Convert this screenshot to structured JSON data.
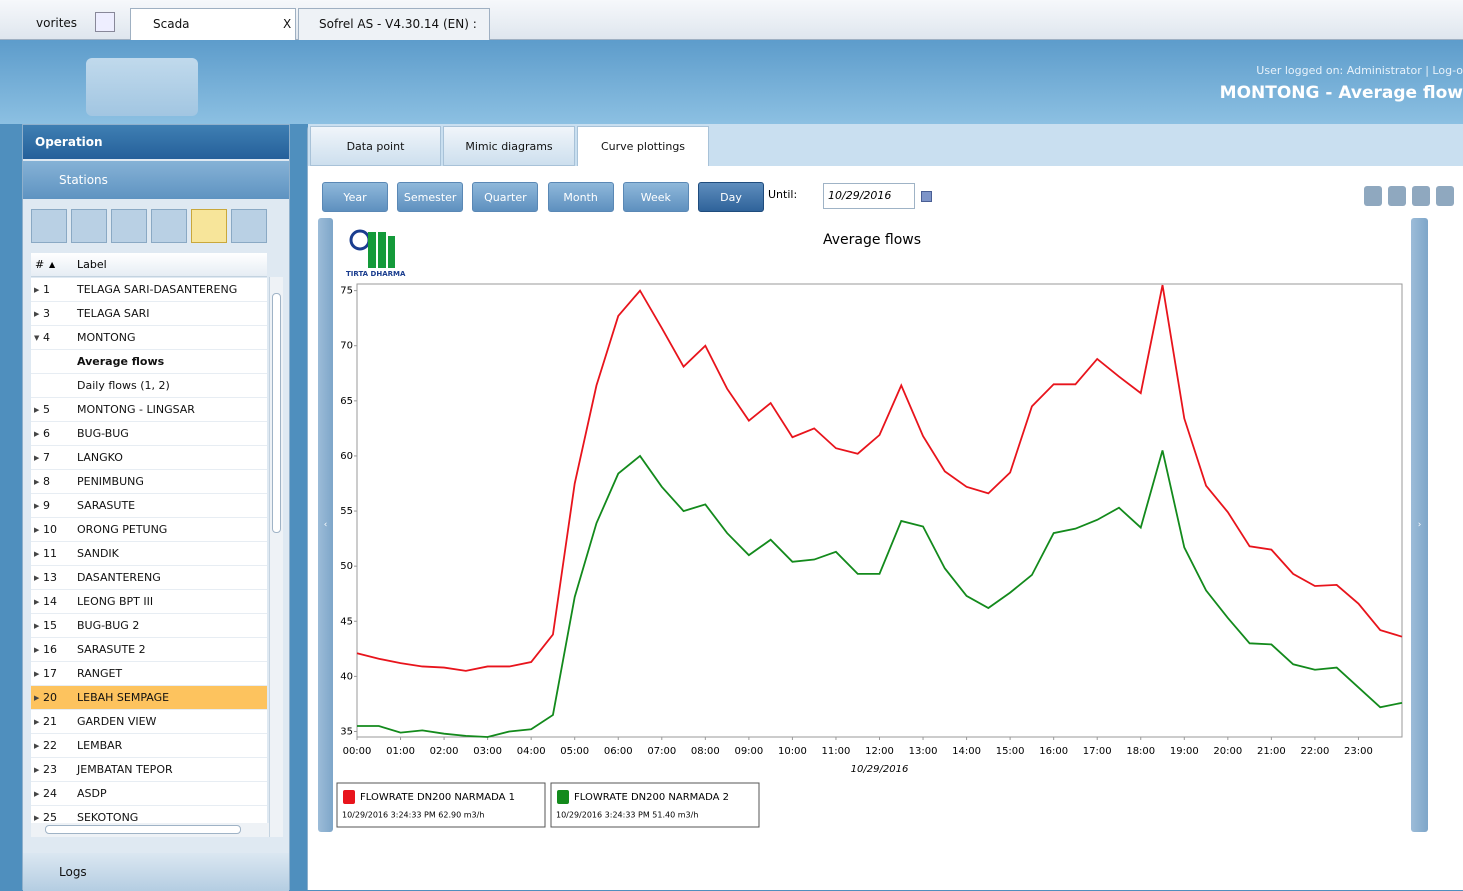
{
  "browser": {
    "tabs": [
      "vorites",
      "Scada",
      "Sofrel AS - V4.30.14 (EN) : ..."
    ],
    "close": "X"
  },
  "header": {
    "user": "User logged on: Administrator | Log-o",
    "title": "MONTONG - Average flow"
  },
  "sidebar": {
    "title": "Operation",
    "section": "Stations",
    "columns": [
      "#",
      "Label"
    ],
    "rows": [
      {
        "id": "1",
        "label": "TELAGA SARI-DASANTERENG"
      },
      {
        "id": "3",
        "label": "TELAGA SARI"
      },
      {
        "id": "4",
        "label": "MONTONG",
        "expanded": true
      },
      {
        "label": "Average flows",
        "current": true
      },
      {
        "label": "Daily flows (1, 2)"
      },
      {
        "id": "5",
        "label": "MONTONG - LINGSAR"
      },
      {
        "id": "6",
        "label": "BUG-BUG"
      },
      {
        "id": "7",
        "label": "LANGKO"
      },
      {
        "id": "8",
        "label": "PENIMBUNG"
      },
      {
        "id": "9",
        "label": "SARASUTE"
      },
      {
        "id": "10",
        "label": "ORONG PETUNG"
      },
      {
        "id": "11",
        "label": "SANDIK"
      },
      {
        "id": "13",
        "label": "DASANTERENG"
      },
      {
        "id": "14",
        "label": "LEONG BPT III"
      },
      {
        "id": "15",
        "label": "BUG-BUG 2"
      },
      {
        "id": "16",
        "label": "SARASUTE 2"
      },
      {
        "id": "17",
        "label": "RANGET"
      },
      {
        "id": "20",
        "label": "LEBAH SEMPAGE",
        "highlighted": true
      },
      {
        "id": "21",
        "label": "GARDEN VIEW"
      },
      {
        "id": "22",
        "label": "LEMBAR"
      },
      {
        "id": "23",
        "label": "JEMBATAN TEPOR"
      },
      {
        "id": "24",
        "label": "ASDP"
      },
      {
        "id": "25",
        "label": "SEKOTONG"
      }
    ],
    "footer": "Logs"
  },
  "tabs": [
    "Data point",
    "Mimic diagrams",
    "Curve plottings"
  ],
  "active_tab": 2,
  "toolbar": {
    "periods": [
      "Year",
      "Semester",
      "Quarter",
      "Month",
      "Week",
      "Day"
    ],
    "active_period": 5,
    "until_label": "Until:",
    "until": "10/29/2016"
  },
  "chart_data": {
    "type": "line",
    "title": "Average flows",
    "logo": "TIRTA DHARMA",
    "xlabel": "10/29/2016",
    "grid": false,
    "x": [
      0,
      0.5,
      1,
      1.5,
      2,
      2.5,
      3,
      3.5,
      4,
      4.5,
      5,
      5.5,
      6,
      6.5,
      7,
      7.5,
      8,
      8.5,
      9,
      9.5,
      10,
      10.5,
      11,
      11.5,
      12,
      12.5,
      13,
      13.5,
      14,
      14.5,
      15,
      15.5,
      16,
      16.5,
      17,
      17.5,
      18,
      18.5,
      19,
      19.5,
      20,
      20.5,
      21,
      21.5,
      22,
      22.5,
      23,
      23.5,
      24
    ],
    "xlim": [
      0,
      24
    ],
    "xticks": [
      {
        "value": 0,
        "label": "00:00"
      },
      {
        "value": 1,
        "label": "01:00"
      },
      {
        "value": 2,
        "label": "02:00"
      },
      {
        "value": 3,
        "label": "03:00"
      },
      {
        "value": 4,
        "label": "04:00"
      },
      {
        "value": 5,
        "label": "05:00"
      },
      {
        "value": 6,
        "label": "06:00"
      },
      {
        "value": 7,
        "label": "07:00"
      },
      {
        "value": 8,
        "label": "08:00"
      },
      {
        "value": 9,
        "label": "09:00"
      },
      {
        "value": 10,
        "label": "10:00"
      },
      {
        "value": 11,
        "label": "11:00"
      },
      {
        "value": 12,
        "label": "12:00"
      },
      {
        "value": 13,
        "label": "13:00"
      },
      {
        "value": 14,
        "label": "14:00"
      },
      {
        "value": 15,
        "label": "15:00"
      },
      {
        "value": 16,
        "label": "16:00"
      },
      {
        "value": 17,
        "label": "17:00"
      },
      {
        "value": 18,
        "label": "18:00"
      },
      {
        "value": 19,
        "label": "19:00"
      },
      {
        "value": 20,
        "label": "20:00"
      },
      {
        "value": 21,
        "label": "21:00"
      },
      {
        "value": 22,
        "label": "22:00"
      },
      {
        "value": 23,
        "label": "23:00"
      }
    ],
    "ylim": [
      34.5,
      75.6
    ],
    "yticks": [
      35,
      40,
      45,
      50,
      55,
      60,
      65,
      70,
      75
    ],
    "series": [
      {
        "name": "FLOWRATE DN200 NARMADA 1",
        "color": "#e8141c",
        "status": "10/29/2016 3:24:33 PM 62.90 m3/h",
        "values": [
          42.1,
          41.6,
          41.2,
          40.9,
          40.8,
          40.5,
          40.9,
          40.9,
          41.3,
          43.8,
          57.5,
          66.4,
          72.7,
          75.0,
          71.6,
          68.1,
          70.0,
          66.1,
          63.2,
          64.8,
          61.7,
          62.5,
          60.7,
          60.2,
          61.9,
          66.4,
          61.8,
          58.6,
          57.2,
          56.6,
          58.5,
          64.5,
          66.5,
          66.5,
          68.8,
          67.2,
          65.7,
          75.5,
          63.4,
          57.3,
          54.9,
          51.8,
          51.5,
          49.3,
          48.2,
          48.3,
          46.6,
          44.2,
          43.6
        ]
      },
      {
        "name": "FLOWRATE DN200 NARMADA 2",
        "color": "#138a1c",
        "status": "10/29/2016 3:24:33 PM 51.40 m3/h",
        "values": [
          35.5,
          35.5,
          34.9,
          35.1,
          34.8,
          34.6,
          34.5,
          35.0,
          35.2,
          36.5,
          47.2,
          53.9,
          58.4,
          60.0,
          57.2,
          55.0,
          55.6,
          53.0,
          51.0,
          52.4,
          50.4,
          50.6,
          51.3,
          49.3,
          49.3,
          54.1,
          53.6,
          49.8,
          47.3,
          46.2,
          47.6,
          49.2,
          53.0,
          53.4,
          54.2,
          55.3,
          53.5,
          60.5,
          51.7,
          47.8,
          45.3,
          43.0,
          42.9,
          41.1,
          40.6,
          40.8,
          39.0,
          37.2,
          37.6
        ]
      }
    ]
  }
}
